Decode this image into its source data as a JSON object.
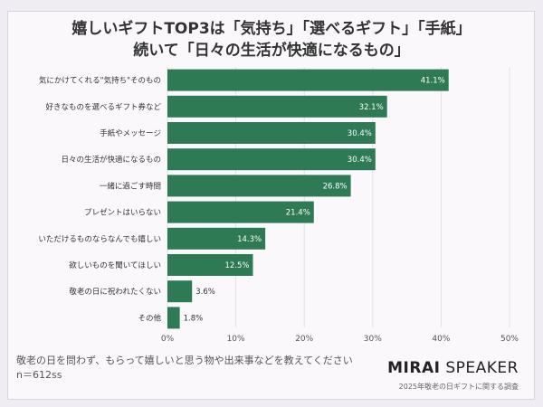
{
  "chart_data": {
    "type": "bar",
    "orientation": "horizontal",
    "title": [
      "嬉しいギフトTOP3は「気持ち」「選べるギフト」「手紙」",
      "続いて「日々の生活が快適になるもの」"
    ],
    "categories": [
      "気にかけてくれる\"気持ち\"そのもの",
      "好きなものを選べるギフト券など",
      "手紙やメッセージ",
      "日々の生活が快適になるもの",
      "一緒に過ごす時間",
      "プレゼントはいらない",
      "いただけるものならなんでも嬉しい",
      "欲しいものを聞いてほしい",
      "敬老の日に祝われたくない",
      "その他"
    ],
    "values": [
      41.1,
      32.1,
      30.4,
      30.4,
      26.8,
      21.4,
      14.3,
      12.5,
      3.6,
      1.8
    ],
    "data_labels": [
      "41.1%",
      "32.1%",
      "30.4%",
      "30.4%",
      "26.8%",
      "21.4%",
      "14.3%",
      "12.5%",
      "3.6%",
      "1.8%"
    ],
    "xlim": [
      0,
      50
    ],
    "xticks": [
      "0%",
      "10%",
      "20%",
      "30%",
      "40%",
      "50%"
    ],
    "grid": true,
    "bar_color": "#2e7a55"
  },
  "footer": {
    "question": "敬老の日を問わず、もらって嬉しいと思う物や出来事などを教えてください",
    "n": "n＝612ss",
    "logo_bold": "MIRAI",
    "logo_light": " SPEAKER",
    "survey": "2025年敬老の日ギフトに関する調査"
  }
}
